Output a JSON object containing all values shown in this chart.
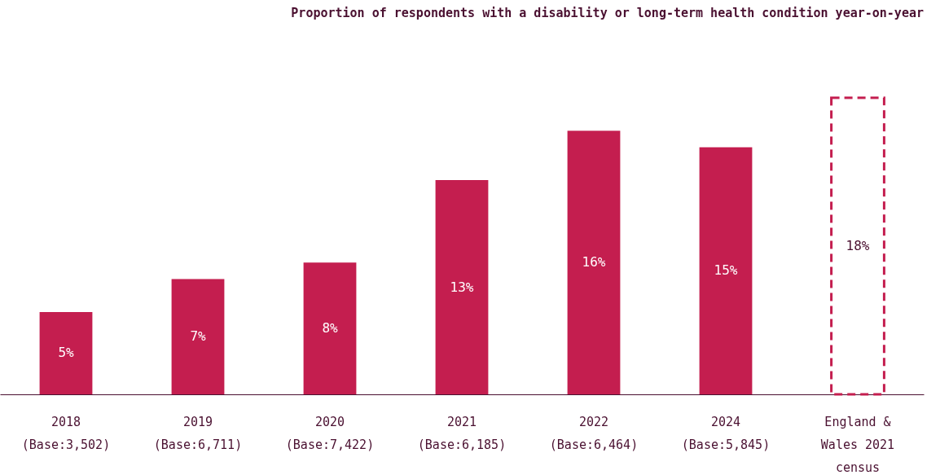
{
  "chart_data": {
    "type": "bar",
    "title": "Proportion of respondents with a disability or long-term health condition year-on-year",
    "categories": [
      "2018\n(Base:3,502)",
      "2019\n(Base:6,711)",
      "2020\n(Base:7,422)",
      "2021\n(Base:6,185)",
      "2022\n(Base:6,464)",
      "2024\n(Base:5,845)",
      "England &\nWales 2021\ncensus"
    ],
    "grid": false,
    "series": [
      {
        "color": "#c41e4f",
        "line_style": "solid",
        "values": [
          5,
          7,
          8,
          13,
          16,
          15,
          null
        ],
        "value_labels": [
          "5%",
          "7%",
          "8%",
          "13%",
          "16%",
          "15%",
          null
        ]
      },
      {
        "color": "#c41e4f",
        "line_style": "dashed",
        "values": [
          null,
          null,
          null,
          null,
          null,
          null,
          18
        ],
        "value_labels": [
          null,
          null,
          null,
          null,
          null,
          null,
          "18%"
        ]
      }
    ]
  }
}
